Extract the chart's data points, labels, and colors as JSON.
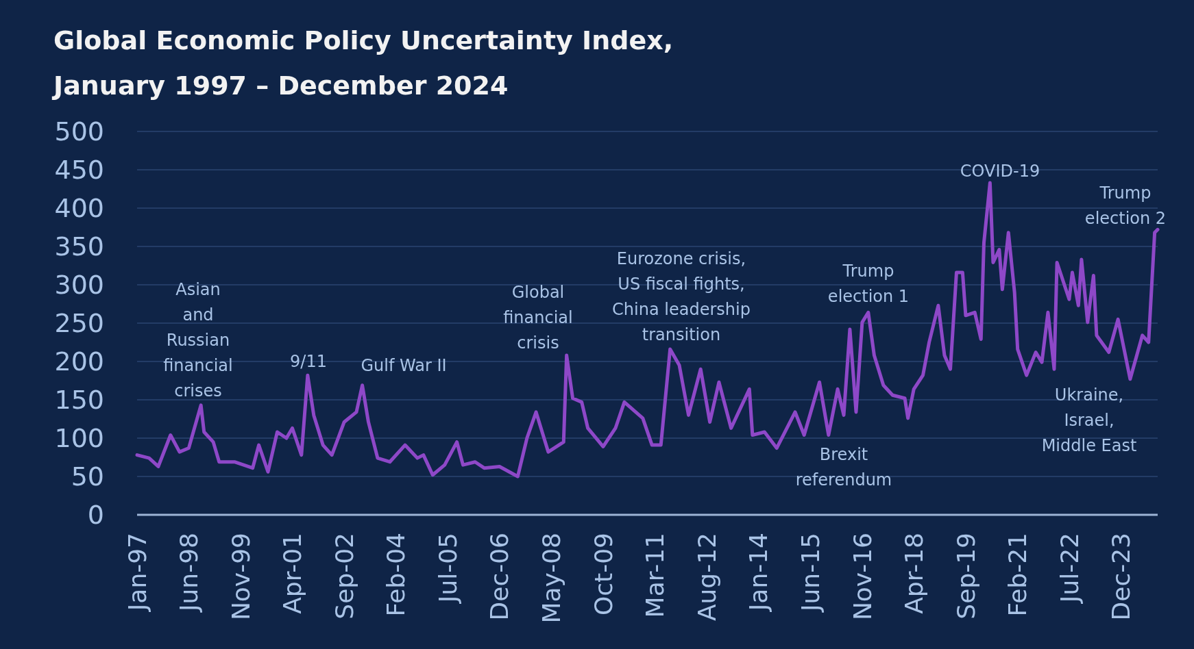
{
  "chart_data": {
    "type": "line",
    "title": "Global Economic Policy Uncertainty Index,\nJanuary 1997 – December 2024",
    "x": [
      "1997-01",
      "1997-05",
      "1997-08",
      "1997-12",
      "1998-03",
      "1998-06",
      "1998-10",
      "1998-11",
      "1999-02",
      "1999-04",
      "1999-09",
      "2000-03",
      "2000-05",
      "2000-08",
      "2000-11",
      "2001-02",
      "2001-04",
      "2001-07",
      "2001-09",
      "2001-11",
      "2002-02",
      "2002-05",
      "2002-09",
      "2003-01",
      "2003-03",
      "2003-05",
      "2003-08",
      "2003-12",
      "2004-05",
      "2004-09",
      "2004-11",
      "2005-02",
      "2005-06",
      "2005-10",
      "2005-12",
      "2006-04",
      "2006-07",
      "2006-12",
      "2007-06",
      "2007-09",
      "2007-12",
      "2008-04",
      "2008-09",
      "2008-10",
      "2008-12",
      "2009-03",
      "2009-05",
      "2009-10",
      "2010-02",
      "2010-05",
      "2010-11",
      "2011-02",
      "2011-05",
      "2011-08",
      "2011-11",
      "2012-02",
      "2012-06",
      "2012-09",
      "2012-12",
      "2013-04",
      "2013-10",
      "2013-11",
      "2014-03",
      "2014-07",
      "2015-01",
      "2015-04",
      "2015-09",
      "2015-12",
      "2016-03",
      "2016-05",
      "2016-07",
      "2016-09",
      "2016-11",
      "2017-01",
      "2017-03",
      "2017-06",
      "2017-09",
      "2018-01",
      "2018-02",
      "2018-04",
      "2018-07",
      "2018-09",
      "2018-12",
      "2019-02",
      "2019-04",
      "2019-06",
      "2019-08",
      "2019-09",
      "2019-12",
      "2020-02",
      "2020-03",
      "2020-05",
      "2020-06",
      "2020-08",
      "2020-09",
      "2020-11",
      "2021-01",
      "2021-02",
      "2021-05",
      "2021-08",
      "2021-10",
      "2021-12",
      "2022-02",
      "2022-03",
      "2022-07",
      "2022-08",
      "2022-10",
      "2022-11",
      "2023-01",
      "2023-03",
      "2023-04",
      "2023-08",
      "2023-11",
      "2024-03",
      "2024-07",
      "2024-09",
      "2024-11",
      "2024-12"
    ],
    "series": [
      {
        "color": "#8e48c8",
        "values": [
          78,
          74,
          63,
          104,
          82,
          87,
          143,
          108,
          95,
          69,
          69,
          61,
          91,
          56,
          108,
          100,
          113,
          78,
          182,
          130,
          91,
          78,
          121,
          134,
          169,
          121,
          74,
          69,
          91,
          74,
          78,
          52,
          65,
          95,
          65,
          69,
          61,
          63,
          50,
          100,
          134,
          82,
          95,
          208,
          152,
          147,
          113,
          89,
          113,
          147,
          126,
          91,
          91,
          216,
          195,
          130,
          190,
          121,
          173,
          113,
          164,
          104,
          108,
          87,
          134,
          104,
          173,
          104,
          164,
          130,
          242,
          134,
          251,
          264,
          208,
          169,
          156,
          152,
          126,
          164,
          182,
          225,
          273,
          208,
          190,
          316,
          316,
          260,
          264,
          229,
          355,
          433,
          329,
          346,
          294,
          368,
          290,
          216,
          182,
          212,
          199,
          264,
          190,
          329,
          281,
          316,
          273,
          333,
          251,
          312,
          234,
          212,
          255,
          177,
          234,
          225,
          368,
          372
        ]
      }
    ],
    "xlim": [
      "1997-01",
      "2024-12"
    ],
    "xticks": [
      {
        "value": "1997-01",
        "label": "Jan-97"
      },
      {
        "value": "1998-06",
        "label": "Jun-98"
      },
      {
        "value": "1999-11",
        "label": "Nov-99"
      },
      {
        "value": "2001-04",
        "label": "Apr-01"
      },
      {
        "value": "2002-09",
        "label": "Sep-02"
      },
      {
        "value": "2004-02",
        "label": "Feb-04"
      },
      {
        "value": "2005-07",
        "label": "Jul-05"
      },
      {
        "value": "2006-12",
        "label": "Dec-06"
      },
      {
        "value": "2008-05",
        "label": "May-08"
      },
      {
        "value": "2009-10",
        "label": "Oct-09"
      },
      {
        "value": "2011-03",
        "label": "Mar-11"
      },
      {
        "value": "2012-08",
        "label": "Aug-12"
      },
      {
        "value": "2014-01",
        "label": "Jan-14"
      },
      {
        "value": "2015-06",
        "label": "Jun-15"
      },
      {
        "value": "2016-11",
        "label": "Nov-16"
      },
      {
        "value": "2018-04",
        "label": "Apr-18"
      },
      {
        "value": "2019-09",
        "label": "Sep-19"
      },
      {
        "value": "2021-02",
        "label": "Feb-21"
      },
      {
        "value": "2022-07",
        "label": "Jul-22"
      },
      {
        "value": "2023-12",
        "label": "Dec-23"
      }
    ],
    "ylim": [
      0,
      500
    ],
    "yticks": [
      0,
      50,
      100,
      150,
      200,
      250,
      300,
      350,
      400,
      450,
      500
    ],
    "grid": "y",
    "annotations": [
      "Asian\nand\nRussian\nfinancial\ncrises",
      "9/11",
      "Gulf War II",
      "Global\nfinancial\ncrisis",
      "Eurozone crisis,\nUS fiscal fights,\nChina leadership\ntransition",
      "Brexit\nreferendum",
      "Trump\nelection 1",
      "COVID-19",
      "Ukraine,\nIsrael,\nMiddle East",
      "Trump\nelection 2"
    ]
  }
}
